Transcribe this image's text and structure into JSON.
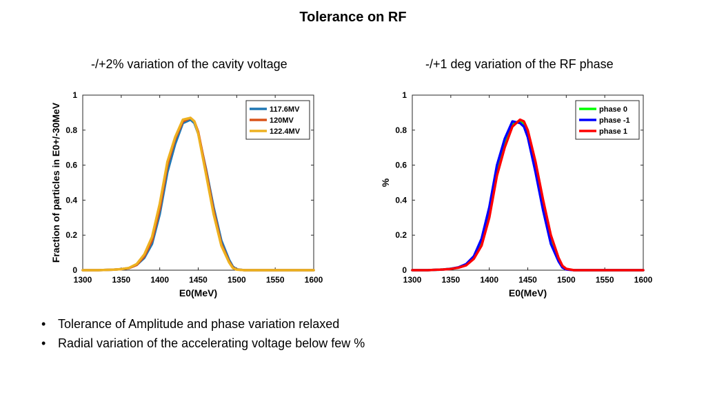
{
  "slide": {
    "title": "Tolerance on RF",
    "bullets": [
      "Tolerance of Amplitude and phase variation relaxed",
      "Radial variation of the accelerating voltage below few %"
    ],
    "bullet_glyph": "•"
  },
  "chart_data": [
    {
      "type": "line",
      "title": "-/+2% variation of the cavity voltage",
      "xlabel": "E0(MeV)",
      "ylabel": "Fraction of particles in E0+/-30MeV",
      "xlim": [
        1300,
        1600
      ],
      "ylim": [
        0,
        1
      ],
      "xticks": [
        "1300",
        "1350",
        "1400",
        "1450",
        "1500",
        "1550",
        "1600"
      ],
      "yticks": [
        "0",
        "0.2",
        "0.4",
        "0.6",
        "0.8",
        "1"
      ],
      "grid": false,
      "legend_position": "top-right",
      "x": [
        1300,
        1320,
        1340,
        1350,
        1360,
        1370,
        1380,
        1390,
        1400,
        1410,
        1420,
        1430,
        1440,
        1445,
        1450,
        1460,
        1470,
        1480,
        1490,
        1495,
        1500,
        1510,
        1520,
        1540,
        1560,
        1580,
        1600
      ],
      "series": [
        {
          "name": "117.6MV",
          "color": "#1f77b4",
          "values": [
            0,
            0,
            0.003,
            0.006,
            0.012,
            0.03,
            0.07,
            0.15,
            0.32,
            0.56,
            0.72,
            0.84,
            0.86,
            0.84,
            0.78,
            0.58,
            0.36,
            0.17,
            0.06,
            0.02,
            0.005,
            0,
            0,
            0,
            0,
            0,
            0
          ]
        },
        {
          "name": "120MV",
          "color": "#d95319",
          "values": [
            0,
            0,
            0.003,
            0.006,
            0.012,
            0.03,
            0.08,
            0.17,
            0.35,
            0.6,
            0.75,
            0.85,
            0.87,
            0.85,
            0.79,
            0.57,
            0.34,
            0.15,
            0.05,
            0.015,
            0.004,
            0,
            0,
            0,
            0,
            0,
            0
          ]
        },
        {
          "name": "122.4MV",
          "color": "#edb120",
          "values": [
            0,
            0,
            0.003,
            0.006,
            0.013,
            0.035,
            0.09,
            0.19,
            0.38,
            0.62,
            0.76,
            0.86,
            0.87,
            0.85,
            0.78,
            0.55,
            0.32,
            0.14,
            0.045,
            0.012,
            0.003,
            0,
            0,
            0,
            0,
            0,
            0
          ]
        }
      ]
    },
    {
      "type": "line",
      "title": "-/+1 deg variation of the RF phase",
      "xlabel": "E0(MeV)",
      "ylabel": "%",
      "xlim": [
        1300,
        1600
      ],
      "ylim": [
        0,
        1
      ],
      "xticks": [
        "1300",
        "1350",
        "1400",
        "1450",
        "1500",
        "1550",
        "1600"
      ],
      "yticks": [
        "0",
        "0.2",
        "0.4",
        "0.6",
        "0.8",
        "1"
      ],
      "grid": false,
      "legend_position": "top-right",
      "x": [
        1300,
        1320,
        1340,
        1350,
        1360,
        1370,
        1380,
        1390,
        1400,
        1410,
        1420,
        1430,
        1440,
        1445,
        1450,
        1460,
        1470,
        1480,
        1490,
        1495,
        1500,
        1510,
        1520,
        1540,
        1560,
        1580,
        1600
      ],
      "series": [
        {
          "name": "phase 0",
          "color": "#00ff00",
          "values": [
            0,
            0,
            0.004,
            0.008,
            0.015,
            0.03,
            0.07,
            0.16,
            0.33,
            0.57,
            0.72,
            0.84,
            0.85,
            0.84,
            0.78,
            0.6,
            0.38,
            0.18,
            0.06,
            0.02,
            0.006,
            0,
            0,
            0,
            0,
            0,
            0
          ]
        },
        {
          "name": "phase -1",
          "color": "#0000ff",
          "values": [
            0,
            0,
            0.004,
            0.008,
            0.016,
            0.035,
            0.08,
            0.18,
            0.36,
            0.6,
            0.75,
            0.85,
            0.84,
            0.82,
            0.76,
            0.56,
            0.34,
            0.15,
            0.05,
            0.015,
            0.004,
            0,
            0,
            0,
            0,
            0,
            0
          ]
        },
        {
          "name": "phase 1",
          "color": "#ff0000",
          "values": [
            0,
            0,
            0.004,
            0.007,
            0.014,
            0.028,
            0.065,
            0.14,
            0.3,
            0.54,
            0.7,
            0.82,
            0.86,
            0.85,
            0.8,
            0.62,
            0.4,
            0.2,
            0.07,
            0.025,
            0.008,
            0,
            0,
            0,
            0,
            0,
            0
          ]
        }
      ]
    }
  ]
}
